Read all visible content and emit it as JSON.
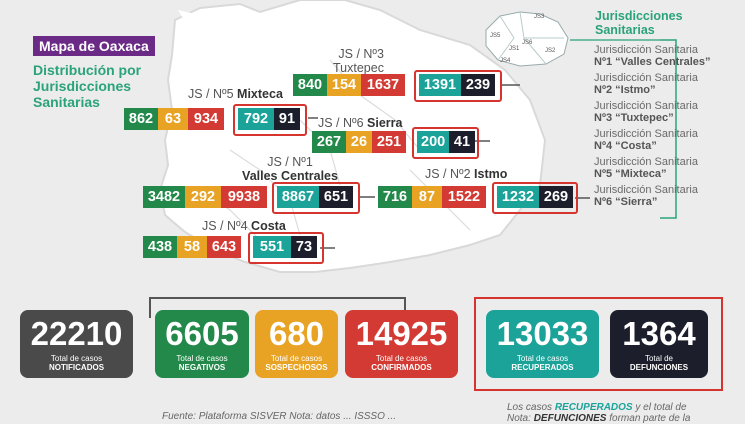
{
  "header": {
    "title": "Mapa de Oaxaca",
    "subtitle_lines": [
      "Distribución por",
      "Jurisdicciones",
      "Sanitarias"
    ]
  },
  "jurisdictions": [
    {
      "id": "js3",
      "label_line1": "JS / Nº3",
      "label_line2": "Tuxtepec",
      "values": [
        "840",
        "154",
        "1637",
        "1391",
        "239"
      ]
    },
    {
      "id": "js5",
      "label_line1": "JS / Nº5",
      "label_line2": "Mixteca",
      "values": [
        "862",
        "63",
        "934",
        "792",
        "91"
      ]
    },
    {
      "id": "js6",
      "label_line1": "JS / Nº6",
      "label_line2": "Sierra",
      "values": [
        "267",
        "26",
        "251",
        "200",
        "41"
      ]
    },
    {
      "id": "js1",
      "label_line1": "JS / Nº1",
      "label_line2": "Valles Centrales",
      "values": [
        "3482",
        "292",
        "9938",
        "8867",
        "651"
      ]
    },
    {
      "id": "js2",
      "label_line1": "JS / Nº2",
      "label_line2": "Istmo",
      "values": [
        "716",
        "87",
        "1522",
        "1232",
        "269"
      ]
    },
    {
      "id": "js4",
      "label_line1": "JS / Nº4",
      "label_line2": "Costa",
      "values": [
        "438",
        "58",
        "643",
        "551",
        "73"
      ]
    }
  ],
  "legend": {
    "title_lines": [
      "Jurisdicciones",
      "Sanitarias"
    ],
    "mini_map_labels": [
      "JS3",
      "JS5",
      "JS1",
      "JS6",
      "JS2",
      "JS4"
    ],
    "items": [
      {
        "line1": "Jurisdicción Sanitaria",
        "line2": "Nº1 “Valles Centrales”"
      },
      {
        "line1": "Jurisdicción Sanitaria",
        "line2": "Nº2 “Istmo”"
      },
      {
        "line1": "Jurisdicción Sanitaria",
        "line2": "Nº3 “Tuxtepec”"
      },
      {
        "line1": "Jurisdicción Sanitaria",
        "line2": "Nº4 “Costa”"
      },
      {
        "line1": "Jurisdicción Sanitaria",
        "line2": "Nº5 “Mixteca”"
      },
      {
        "line1": "Jurisdicción Sanitaria",
        "line2": "Nº6 “Sierra”"
      }
    ]
  },
  "totals": [
    {
      "value": "22210",
      "label1": "Total de casos",
      "label2": "NOTIFICADOS",
      "color": "#4a4a4a"
    },
    {
      "value": "6605",
      "label1": "Total de casos",
      "label2": "NEGATIVOS",
      "color": "#23894a"
    },
    {
      "value": "680",
      "label1": "Total de casos",
      "label2": "SOSPECHOSOS",
      "color": "#e8a224"
    },
    {
      "value": "14925",
      "label1": "Total de casos",
      "label2": "CONFIRMADOS",
      "color": "#d23a33"
    },
    {
      "value": "13033",
      "label1": "Total de casos",
      "label2": "RECUPERADOS",
      "color": "#1ba39a"
    },
    {
      "value": "1364",
      "label1": "Total de",
      "label2": "DEFUNCIONES",
      "color": "#1c1f2b"
    }
  ],
  "footer": {
    "left": "Fuente: Plataforma SISVER Nota: datos ... ISSSO ...",
    "right_line1_pre": "Los casos ",
    "right_line1_em": "RECUPERADOS",
    "right_line1_post": " y el total de",
    "right_line2_pre": "Nota: ",
    "right_line2_em": "DEFUNCIONES",
    "right_line2_post": " forman parte de la"
  },
  "colors": {
    "negativos": "#23894a",
    "sospechosos": "#e8a224",
    "confirmados": "#d23a33",
    "recuperados": "#1ba39a",
    "defunciones": "#1c1f2b",
    "accent_purple": "#6b2a86",
    "accent_green": "#2aa37a"
  }
}
